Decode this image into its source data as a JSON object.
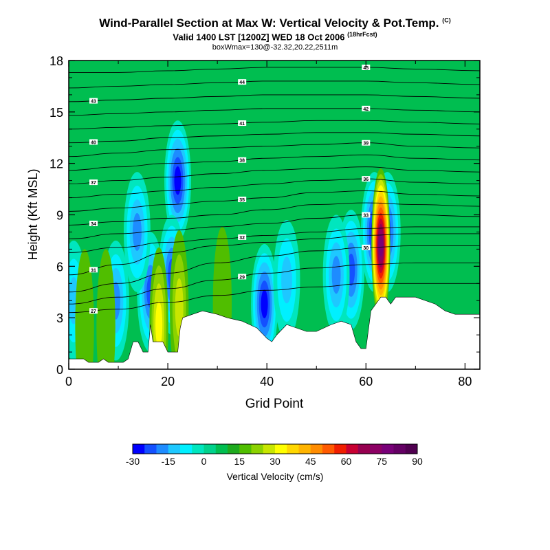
{
  "title": "Wind-Parallel Section at Max W: Vertical Velocity & Pot.Temp.",
  "title_tag": "(C)",
  "subtitle": "Valid 1400 LST [1200Z] WED 18 Oct 2006",
  "subtitle_tag": "(18hrFcst)",
  "location_line": "boxWmax=130@-32.32,20.22,2511m",
  "chart_data": {
    "type": "heatmap",
    "title": "Wind-Parallel Section at Max W: Vertical Velocity & Pot.Temp.",
    "xlabel": "Grid Point",
    "ylabel": "Height (Kft MSL)",
    "xlim": [
      0,
      83
    ],
    "ylim": [
      0,
      18
    ],
    "x_ticks": [
      "0",
      "20",
      "40",
      "60",
      "80"
    ],
    "y_ticks": [
      "0",
      "3",
      "6",
      "9",
      "12",
      "15",
      "18"
    ],
    "colorbar": {
      "label": "Vertical Velocity (cm/s)",
      "tick_labels": [
        "-30",
        "-15",
        "0",
        "15",
        "30",
        "45",
        "60",
        "75",
        "90"
      ],
      "min": -30,
      "max": 90,
      "step": 5,
      "colors": [
        "#0000ff",
        "#1450ff",
        "#1e8cff",
        "#1ec8ff",
        "#00f0ff",
        "#00e6be",
        "#00d28c",
        "#00be50",
        "#1eaa1e",
        "#50be00",
        "#8cd200",
        "#c8e600",
        "#ffff00",
        "#ffd700",
        "#ffb400",
        "#ff8c00",
        "#ff5a00",
        "#f01e00",
        "#c80032",
        "#960050",
        "#8c0064",
        "#780078",
        "#640064",
        "#500050"
      ]
    },
    "background_w": 7,
    "terrain_kft": [
      [
        0,
        0.6
      ],
      [
        2,
        0.6
      ],
      [
        3,
        0.6
      ],
      [
        4,
        0.4
      ],
      [
        6,
        0.4
      ],
      [
        7,
        0.6
      ],
      [
        8,
        0.4
      ],
      [
        11,
        0.4
      ],
      [
        12,
        0.6
      ],
      [
        13,
        1.6
      ],
      [
        14,
        1.6
      ],
      [
        15,
        1.0
      ],
      [
        16,
        1.0
      ],
      [
        16.5,
        2.6
      ],
      [
        17,
        1.6
      ],
      [
        19,
        1.6
      ],
      [
        20,
        1.0
      ],
      [
        22,
        1.0
      ],
      [
        22.5,
        2.4
      ],
      [
        23,
        3.0
      ],
      [
        25,
        3.2
      ],
      [
        27,
        3.4
      ],
      [
        30,
        3.2
      ],
      [
        32,
        3.0
      ],
      [
        35,
        2.8
      ],
      [
        38,
        2.4
      ],
      [
        40,
        1.8
      ],
      [
        41,
        1.6
      ],
      [
        42,
        2.0
      ],
      [
        44,
        2.6
      ],
      [
        46,
        2.4
      ],
      [
        48,
        2.2
      ],
      [
        50,
        2.2
      ],
      [
        53,
        2.6
      ],
      [
        55,
        2.8
      ],
      [
        57,
        2.6
      ],
      [
        58,
        1.6
      ],
      [
        59,
        1.2
      ],
      [
        60,
        1.2
      ],
      [
        61,
        3.4
      ],
      [
        62,
        3.8
      ],
      [
        63,
        4.2
      ],
      [
        64,
        4.2
      ],
      [
        65,
        3.8
      ],
      [
        66,
        4.2
      ],
      [
        68,
        4.2
      ],
      [
        70,
        4.2
      ],
      [
        72,
        4.0
      ],
      [
        74,
        3.8
      ],
      [
        76,
        3.4
      ],
      [
        78,
        3.2
      ],
      [
        80,
        3.2
      ],
      [
        83,
        3.2
      ]
    ],
    "updrafts": [
      {
        "x": 63.0,
        "z": 7.2,
        "peak_w": 78
      },
      {
        "x": 18.2,
        "z": 2.6,
        "peak_w": 32
      },
      {
        "x": 22.3,
        "z": 3.6,
        "peak_w": 28
      },
      {
        "x": 31.0,
        "z": 3.8,
        "peak_w": 18
      },
      {
        "x": 3.2,
        "z": 2.5,
        "peak_w": 16
      },
      {
        "x": 7.5,
        "z": 2.5,
        "peak_w": 15
      },
      {
        "x": 11.5,
        "z": 1.5,
        "peak_w": 12
      }
    ],
    "downdrafts": [
      {
        "x": 61.7,
        "z": 8.0,
        "peak_w": -28
      },
      {
        "x": 64.3,
        "z": 8.0,
        "peak_w": -24
      },
      {
        "x": 57.0,
        "z": 5.8,
        "peak_w": -22
      },
      {
        "x": 54.0,
        "z": 5.5,
        "peak_w": -18
      },
      {
        "x": 39.5,
        "z": 3.8,
        "peak_w": -28
      },
      {
        "x": 22.0,
        "z": 11.0,
        "peak_w": -26
      },
      {
        "x": 20.8,
        "z": 5.5,
        "peak_w": -24
      },
      {
        "x": 16.5,
        "z": 4.5,
        "peak_w": -22
      },
      {
        "x": 13.8,
        "z": 8.0,
        "peak_w": -18
      },
      {
        "x": 9.5,
        "z": 4.0,
        "peak_w": -16
      },
      {
        "x": 1.0,
        "z": 4.0,
        "peak_w": -14
      },
      {
        "x": 44.0,
        "z": 5.2,
        "peak_w": -14
      }
    ],
    "theta_contours": [
      {
        "value": 27,
        "z_kft": [
          3.3,
          3.5,
          3.9,
          4.3,
          4.6,
          4.8,
          5.0,
          5.0,
          5.0
        ]
      },
      {
        "value": 29,
        "z_kft": [
          3.8,
          4.2,
          4.7,
          5.2,
          5.6,
          5.9,
          6.1,
          6.2,
          6.2
        ]
      },
      {
        "value": 30,
        "z_kft": [
          4.5,
          5.0,
          5.6,
          6.2,
          6.6,
          6.9,
          7.1,
          7.2,
          7.2
        ]
      },
      {
        "value": 31,
        "z_kft": [
          5.5,
          6.1,
          6.8,
          7.2,
          7.4,
          7.6,
          7.8,
          7.9,
          7.9
        ]
      },
      {
        "value": 32,
        "z_kft": [
          6.8,
          7.1,
          7.4,
          7.6,
          7.8,
          8.0,
          8.2,
          8.3,
          8.3
        ]
      },
      {
        "value": 33,
        "z_kft": [
          7.6,
          7.9,
          8.1,
          8.3,
          8.5,
          8.8,
          9.0,
          9.0,
          8.9
        ]
      },
      {
        "value": 34,
        "z_kft": [
          8.4,
          8.6,
          8.8,
          9.0,
          9.3,
          9.6,
          9.7,
          9.6,
          9.5
        ]
      },
      {
        "value": 35,
        "z_kft": [
          9.2,
          9.4,
          9.6,
          9.8,
          10.0,
          10.3,
          10.4,
          10.2,
          10.1
        ]
      },
      {
        "value": 36,
        "z_kft": [
          10.0,
          10.2,
          10.4,
          10.6,
          10.8,
          11.0,
          11.1,
          10.9,
          10.8
        ]
      },
      {
        "value": 37,
        "z_kft": [
          10.8,
          11.0,
          11.2,
          11.4,
          11.6,
          11.7,
          11.8,
          11.6,
          11.5
        ]
      },
      {
        "value": 38,
        "z_kft": [
          11.6,
          11.8,
          12.0,
          12.1,
          12.3,
          12.4,
          12.5,
          12.3,
          12.2
        ]
      },
      {
        "value": 39,
        "z_kft": [
          12.4,
          12.6,
          12.8,
          12.9,
          13.0,
          13.1,
          13.2,
          13.0,
          12.9
        ]
      },
      {
        "value": 40,
        "z_kft": [
          13.2,
          13.3,
          13.5,
          13.6,
          13.7,
          13.8,
          13.8,
          13.7,
          13.6
        ]
      },
      {
        "value": 41,
        "z_kft": [
          14.0,
          14.1,
          14.2,
          14.3,
          14.4,
          14.5,
          14.5,
          14.4,
          14.3
        ]
      },
      {
        "value": 42,
        "z_kft": [
          14.8,
          14.9,
          15.0,
          15.1,
          15.2,
          15.2,
          15.2,
          15.1,
          15.0
        ]
      },
      {
        "value": 43,
        "z_kft": [
          15.6,
          15.7,
          15.8,
          15.9,
          16.0,
          16.0,
          16.0,
          15.9,
          15.8
        ]
      },
      {
        "value": 44,
        "z_kft": [
          16.4,
          16.5,
          16.6,
          16.7,
          16.8,
          16.8,
          16.8,
          16.7,
          16.6
        ]
      },
      {
        "value": 45,
        "z_kft": [
          17.3,
          17.3,
          17.4,
          17.5,
          17.6,
          17.6,
          17.6,
          17.5,
          17.4
        ]
      }
    ],
    "theta_contour_x": [
      0,
      10,
      20,
      30,
      40,
      50,
      60,
      70,
      83
    ],
    "theta_label_text": [
      "27",
      "29",
      "30",
      "31",
      "32",
      "33",
      "34",
      "35",
      "36",
      "37",
      "38",
      "39",
      "40",
      "41",
      "42",
      "43",
      "44",
      "45"
    ]
  }
}
